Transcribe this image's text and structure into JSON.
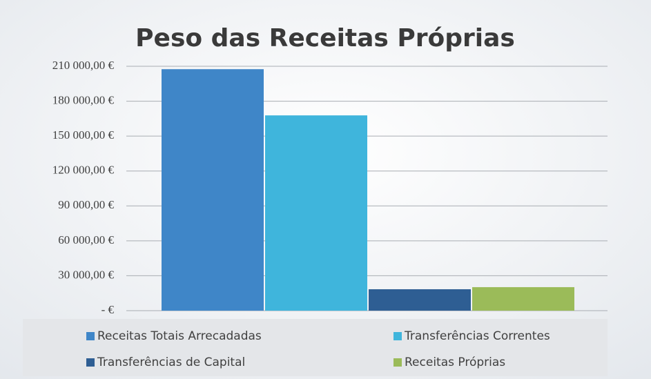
{
  "chart_data": {
    "type": "bar",
    "title": "Peso das Receitas Próprias",
    "categories": [
      null
    ],
    "series": [
      {
        "name": "Receitas Totais Arrecadadas",
        "color": "#3f86c8",
        "values": [
          207500
        ]
      },
      {
        "name": "Transferências Correntes",
        "color": "#3fb5dc",
        "values": [
          167800
        ]
      },
      {
        "name": "Transferências de Capital",
        "color": "#2e5e93",
        "values": [
          18400
        ]
      },
      {
        "name": "Receitas Próprias",
        "color": "#9bbb59",
        "values": [
          20200
        ]
      }
    ],
    "ylim": [
      0,
      210000
    ],
    "yticks": [
      {
        "value": 0,
        "label": "-   €"
      },
      {
        "value": 30000,
        "label": "30 000,00 €"
      },
      {
        "value": 60000,
        "label": "60 000,00 €"
      },
      {
        "value": 90000,
        "label": "90 000,00 €"
      },
      {
        "value": 120000,
        "label": "120 000,00 €"
      },
      {
        "value": 150000,
        "label": "150 000,00 €"
      },
      {
        "value": 180000,
        "label": "180 000,00 €"
      },
      {
        "value": 210000,
        "label": "210 000,00 €"
      }
    ],
    "grid": true,
    "legend": "bottom"
  }
}
